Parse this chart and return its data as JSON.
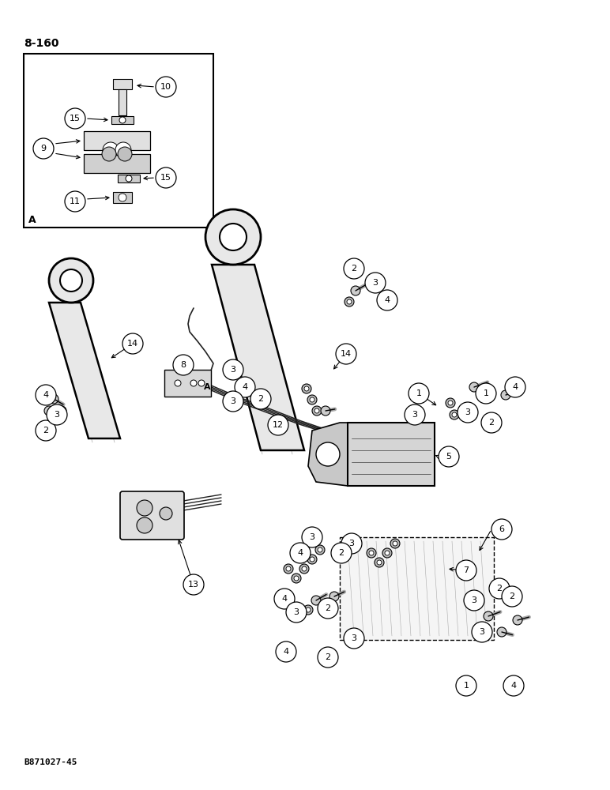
{
  "page_number": "8-160",
  "part_number": "B871027-45",
  "bg": "#ffffff",
  "lc": "#1a1a1a",
  "figure_width": 7.72,
  "figure_height": 10.0,
  "dpi": 100
}
